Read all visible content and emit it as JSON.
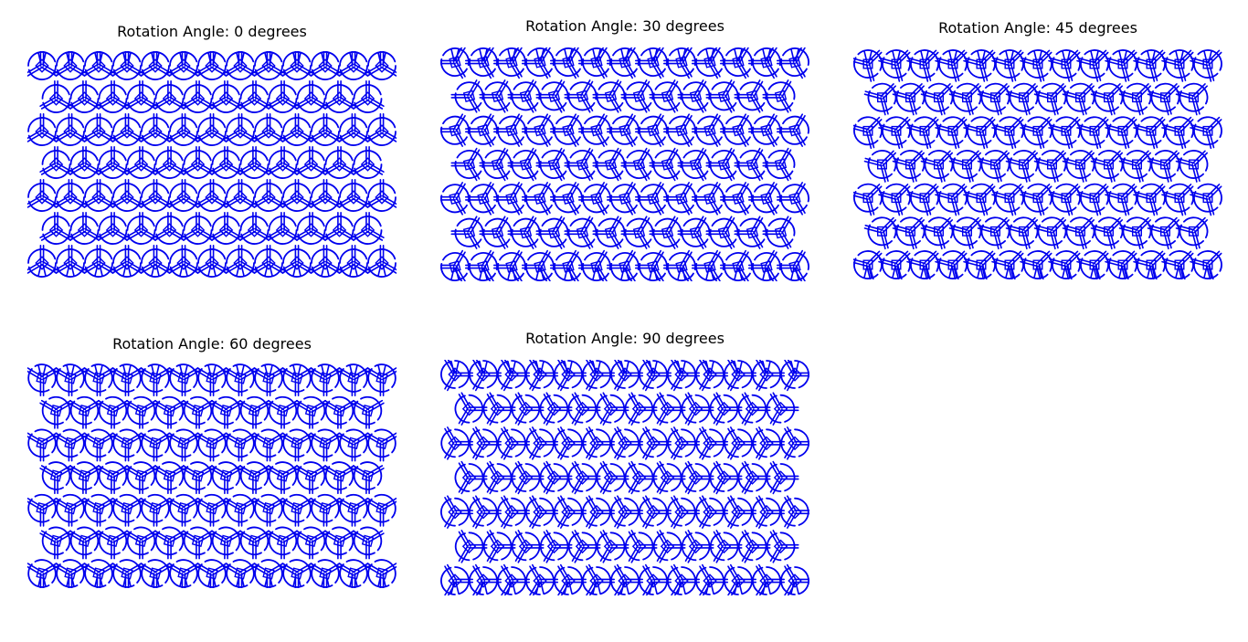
{
  "figure": {
    "line_color": "#0000ee",
    "panels": [
      {
        "title": "Rotation Angle: 0 degrees",
        "angle": 0
      },
      {
        "title": "Rotation Angle: 30 degrees",
        "angle": 30
      },
      {
        "title": "Rotation Angle: 45 degrees",
        "angle": 45
      },
      {
        "title": "Rotation Angle: 60 degrees",
        "angle": 60
      },
      {
        "title": "Rotation Angle: 90 degrees",
        "angle": 90
      }
    ]
  }
}
